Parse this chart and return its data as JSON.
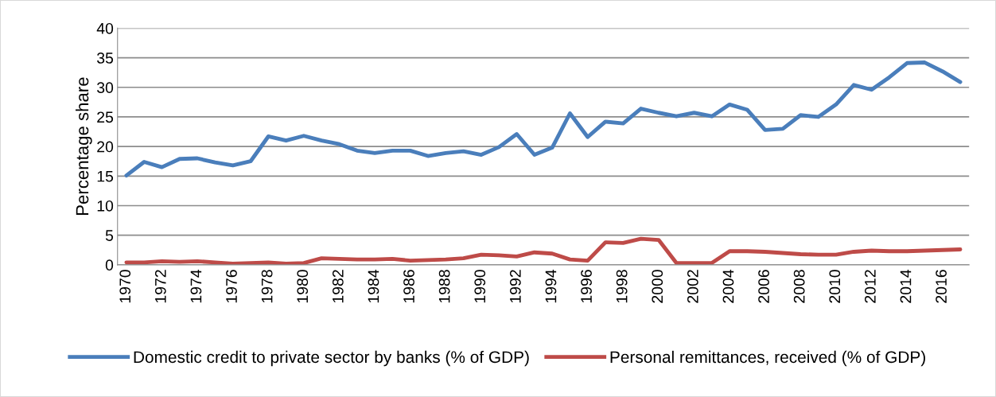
{
  "chart_data": {
    "type": "line",
    "ylabel": "Percentage share",
    "categories": [
      "1970",
      null,
      "1972",
      null,
      "1974",
      null,
      "1976",
      null,
      "1978",
      null,
      "1980",
      null,
      "1982",
      null,
      "1984",
      null,
      "1986",
      null,
      "1988",
      null,
      "1990",
      null,
      "1992",
      null,
      "1994",
      null,
      "1996",
      null,
      "1998",
      null,
      "2000",
      null,
      "2002",
      null,
      "2004",
      null,
      "2006",
      null,
      "2008",
      null,
      "2010",
      null,
      "2012",
      null,
      "2014",
      null,
      "2016",
      null
    ],
    "series": [
      {
        "name": "Domestic credit to private sector by banks (% of GDP)",
        "color": "#4a7ebb",
        "values": [
          15.1,
          17.4,
          16.5,
          17.9,
          18.0,
          17.3,
          16.8,
          17.5,
          21.7,
          21.0,
          21.8,
          21.0,
          20.4,
          19.3,
          18.9,
          19.3,
          19.3,
          18.4,
          18.9,
          19.2,
          18.6,
          19.9,
          22.1,
          18.6,
          19.8,
          25.6,
          21.6,
          24.2,
          23.9,
          26.4,
          25.7,
          25.1,
          25.7,
          25.1,
          27.1,
          26.2,
          22.8,
          23.0,
          25.3,
          25.0,
          27.1,
          30.4,
          29.6,
          31.7,
          34.1,
          34.2,
          32.7,
          30.9
        ]
      },
      {
        "name": "Personal remittances, received (% of GDP)",
        "color": "#be4b48",
        "values": [
          0.4,
          0.4,
          0.6,
          0.5,
          0.6,
          0.4,
          0.2,
          0.3,
          0.4,
          0.2,
          0.3,
          1.1,
          1.0,
          0.9,
          0.9,
          1.0,
          0.7,
          0.8,
          0.9,
          1.1,
          1.7,
          1.6,
          1.4,
          2.1,
          1.9,
          0.9,
          0.7,
          3.8,
          3.7,
          4.4,
          4.2,
          0.3,
          0.3,
          0.3,
          2.3,
          2.3,
          2.2,
          2.0,
          1.8,
          1.7,
          1.7,
          2.2,
          2.4,
          2.3,
          2.3,
          2.4,
          2.5,
          2.6
        ]
      }
    ],
    "ylim": [
      0,
      40
    ],
    "yticks": [
      0,
      5,
      10,
      15,
      20,
      25,
      30,
      35,
      40
    ],
    "grid": "y",
    "legend": "bottom",
    "marker": "none",
    "line_style": "solid"
  }
}
